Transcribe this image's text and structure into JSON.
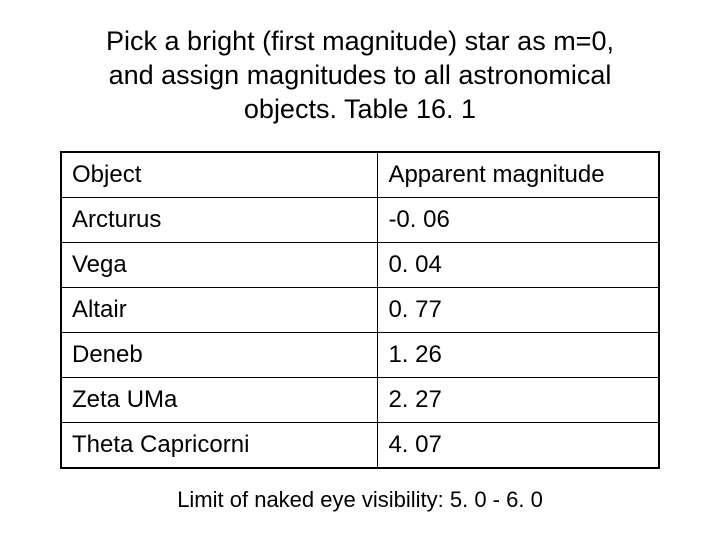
{
  "title": "Pick a bright (first magnitude) star as m=0, and assign magnitudes to all astronomical objects.  Table 16. 1",
  "table": {
    "type": "table",
    "border_color": "#000000",
    "background_color": "#ffffff",
    "text_color": "#000000",
    "font_size_pt": 18,
    "col_widths_pct": [
      53,
      47
    ],
    "columns": [
      "Object",
      "Apparent magnitude"
    ],
    "rows": [
      [
        "Arcturus",
        "-0. 06"
      ],
      [
        "Vega",
        "0. 04"
      ],
      [
        "Altair",
        "0. 77"
      ],
      [
        "Deneb",
        "1. 26"
      ],
      [
        "Zeta UMa",
        "2. 27"
      ],
      [
        "Theta Capricorni",
        "4. 07"
      ]
    ]
  },
  "footer": "Limit of naked eye visibility: 5. 0 - 6. 0",
  "styling": {
    "background_color": "#ffffff",
    "title_fontsize_pt": 20,
    "title_color": "#000000",
    "footer_fontsize_pt": 16,
    "font_family": "Arial"
  }
}
